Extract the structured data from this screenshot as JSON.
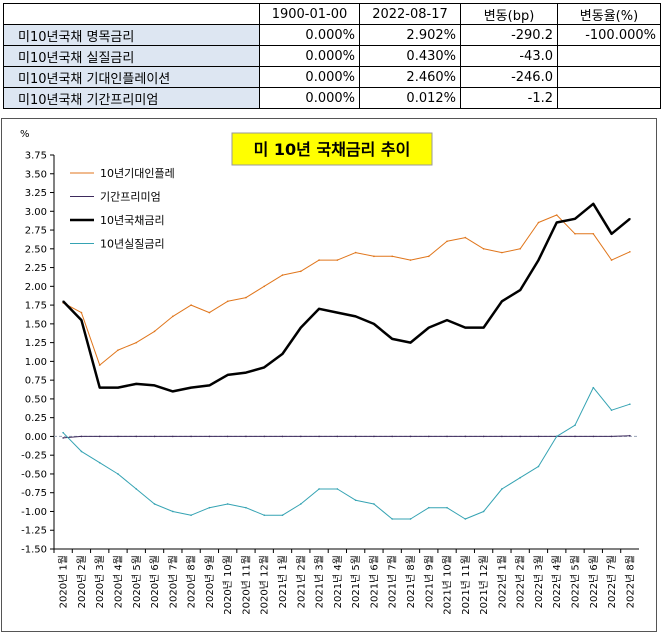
{
  "table": {
    "headers": [
      "",
      "1900-01-00",
      "2022-08-17",
      "변동(bp)",
      "변동율(%)"
    ],
    "rows": [
      {
        "label": "미10년국채 명목금리",
        "v1": "0.000%",
        "v2": "2.902%",
        "bp": "-290.2",
        "pct": "-100.000%"
      },
      {
        "label": "미10년국채 실질금리",
        "v1": "0.000%",
        "v2": "0.430%",
        "bp": "-43.0",
        "pct": ""
      },
      {
        "label": "미10년국채 기대인플레이션",
        "v1": "0.000%",
        "v2": "2.460%",
        "bp": "-246.0",
        "pct": ""
      },
      {
        "label": "미10년국채 기간프리미엄",
        "v1": "0.000%",
        "v2": "0.012%",
        "bp": "-1.2",
        "pct": ""
      }
    ]
  },
  "chart_data": {
    "type": "line",
    "title": "미 10년 국채금리 추이",
    "ylabel": "%",
    "ylim": [
      -1.5,
      3.75
    ],
    "yticks": [
      "3.75",
      "3.50",
      "3.25",
      "3.00",
      "2.75",
      "2.50",
      "2.25",
      "2.00",
      "1.75",
      "1.50",
      "1.25",
      "1.00",
      "0.75",
      "0.50",
      "0.25",
      "0.00",
      "-0.25",
      "-0.50",
      "-0.75",
      "-1.00",
      "-1.25",
      "-1.50"
    ],
    "categories": [
      "2020년 1월",
      "2020년 2월",
      "2020년 3월",
      "2020년 4월",
      "2020년 5월",
      "2020년 6월",
      "2020년 7월",
      "2020년 8월",
      "2020년 9월",
      "2020년 10월",
      "2020년 11월",
      "2020년 12월",
      "2021년 1월",
      "2021년 2월",
      "2021년 3월",
      "2021년 4월",
      "2021년 5월",
      "2021년 6월",
      "2021년 7월",
      "2021년 8월",
      "2021년 9월",
      "2021년 10월",
      "2021년 11월",
      "2021년 12월",
      "2022년 1월",
      "2022년 2월",
      "2022년 3월",
      "2022년 4월",
      "2022년 5월",
      "2022년 6월",
      "2022년 7월",
      "2022년 8월"
    ],
    "legend_position": "top-left",
    "series": [
      {
        "name": "10년기대인플레",
        "color": "#e0761c",
        "width": 1,
        "values": [
          1.78,
          1.65,
          0.95,
          1.15,
          1.25,
          1.4,
          1.6,
          1.75,
          1.65,
          1.8,
          1.85,
          2.0,
          2.15,
          2.2,
          2.35,
          2.35,
          2.45,
          2.4,
          2.4,
          2.35,
          2.4,
          2.6,
          2.65,
          2.5,
          2.45,
          2.5,
          2.85,
          2.95,
          2.7,
          2.7,
          2.35,
          2.46
        ]
      },
      {
        "name": "기간프리미엄",
        "color": "#3d2a5c",
        "width": 1,
        "values": [
          -0.02,
          0.0,
          0.0,
          0.0,
          0.0,
          0.0,
          0.0,
          0.0,
          0.0,
          0.0,
          0.0,
          0.0,
          0.0,
          0.0,
          0.0,
          0.0,
          0.0,
          0.0,
          0.0,
          0.0,
          0.0,
          0.0,
          0.0,
          0.0,
          0.0,
          0.0,
          0.0,
          0.0,
          0.0,
          0.0,
          0.0,
          0.01
        ]
      },
      {
        "name": "10년국채금리",
        "color": "#000000",
        "width": 2.5,
        "values": [
          1.8,
          1.55,
          0.65,
          0.65,
          0.7,
          0.68,
          0.6,
          0.65,
          0.68,
          0.82,
          0.85,
          0.92,
          1.1,
          1.45,
          1.7,
          1.65,
          1.6,
          1.5,
          1.3,
          1.25,
          1.45,
          1.55,
          1.45,
          1.45,
          1.8,
          1.95,
          2.35,
          2.85,
          2.9,
          3.1,
          2.7,
          2.9
        ]
      },
      {
        "name": "10년실질금리",
        "color": "#35a3b3",
        "width": 1,
        "values": [
          0.05,
          -0.2,
          -0.35,
          -0.5,
          -0.7,
          -0.9,
          -1.0,
          -1.05,
          -0.95,
          -0.9,
          -0.95,
          -1.05,
          -1.05,
          -0.9,
          -0.7,
          -0.7,
          -0.85,
          -0.9,
          -1.1,
          -1.1,
          -0.95,
          -0.95,
          -1.1,
          -1.0,
          -0.7,
          -0.55,
          -0.4,
          0.0,
          0.15,
          0.65,
          0.35,
          0.43
        ]
      }
    ]
  }
}
